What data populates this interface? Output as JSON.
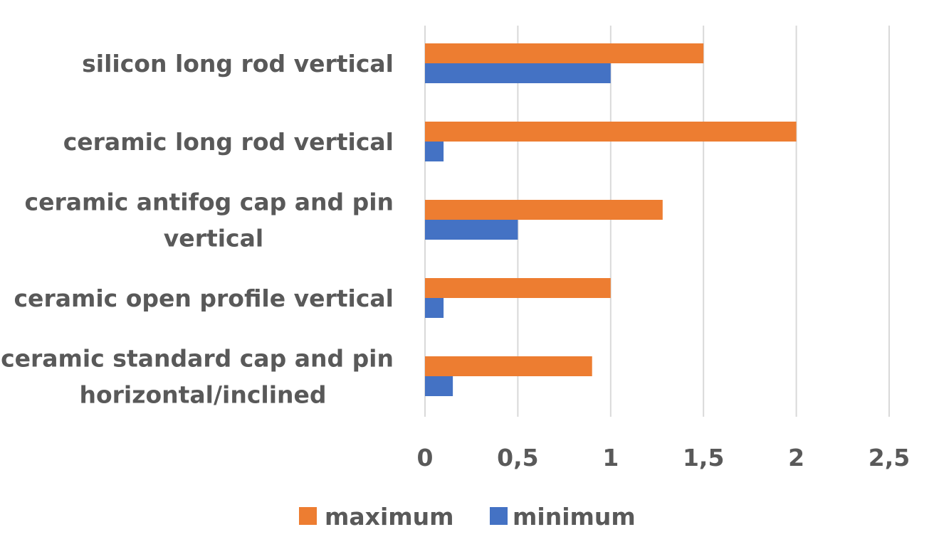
{
  "chart_data": {
    "type": "bar",
    "orientation": "horizontal",
    "categories": [
      "silicon long rod vertical",
      "ceramic long rod vertical",
      "ceramic antifog cap and pin vertical",
      "ceramic open profile  vertical",
      "ceramic standard cap and pin horizontal/inclined"
    ],
    "category_lines": [
      [
        "silicon long rod vertical"
      ],
      [
        "ceramic long rod vertical"
      ],
      [
        "ceramic antifog cap and pin",
        "vertical"
      ],
      [
        "ceramic open profile  vertical"
      ],
      [
        "ceramic standard cap and pin",
        "horizontal/inclined"
      ]
    ],
    "series": [
      {
        "name": "maximum",
        "color": "#ED7D31",
        "values": [
          1.5,
          2.0,
          1.28,
          1.0,
          0.9
        ]
      },
      {
        "name": "minimum",
        "color": "#4472C4",
        "values": [
          1.0,
          0.1,
          0.5,
          0.1,
          0.15
        ]
      }
    ],
    "xlim": [
      0,
      2.5
    ],
    "xticks": [
      0,
      0.5,
      1,
      1.5,
      2,
      2.5
    ],
    "xtick_labels": [
      "0",
      "0,5",
      "1",
      "1,5",
      "2",
      "2,5"
    ],
    "grid": true,
    "legend_position": "bottom",
    "title": "",
    "xlabel": "",
    "ylabel": ""
  }
}
